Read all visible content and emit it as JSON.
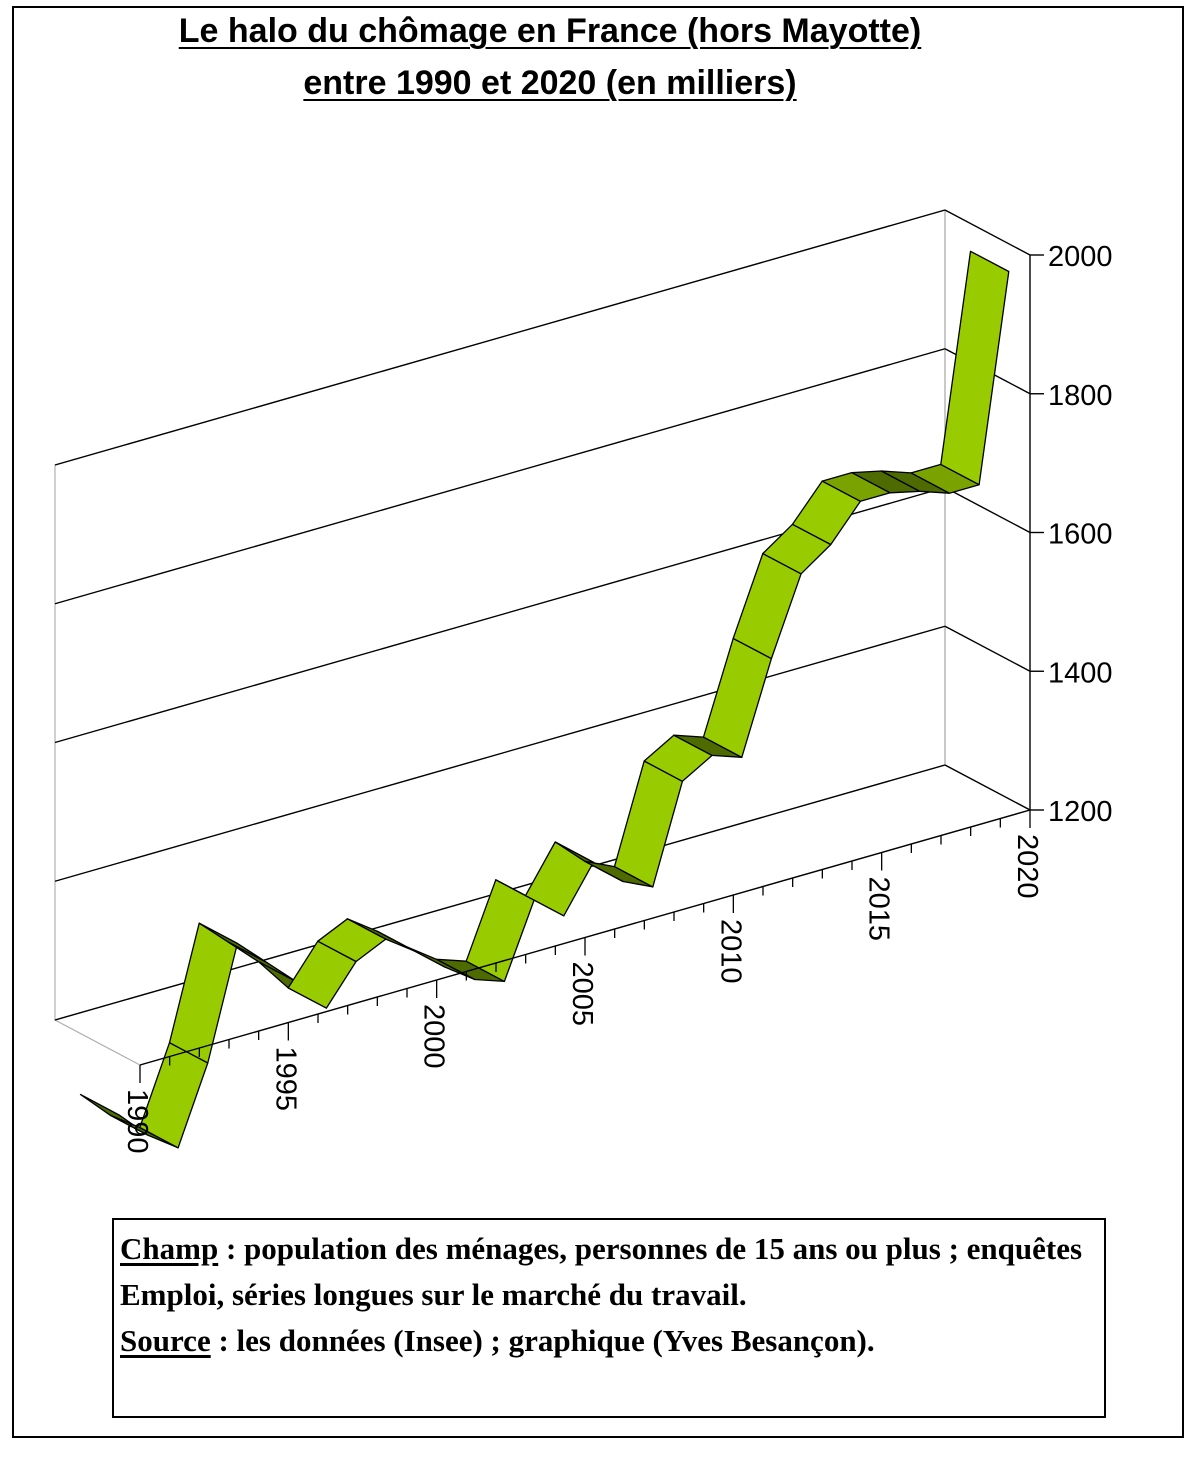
{
  "title_line1": "Le halo du chômage en France (hors Mayotte)",
  "title_line2": "entre 1990 et 2020 (en milliers)",
  "note": {
    "champ_label": "Champ",
    "champ_text": " : population des ménages, personnes de 15 ans ou plus ; enquêtes Emploi, séries longues sur le marché du travail.",
    "source_label": "Source",
    "source_text": " : les données (Insee) ; graphique (Yves Besançon)."
  },
  "colors": {
    "ribbon_top": "#99cc00",
    "ribbon_dark": "#4d6b00",
    "ribbon_mid": "#7aa300",
    "gridline": "#000000",
    "wall": "#b0b0b0"
  },
  "chart_data": {
    "type": "area",
    "style": "3d-ribbon",
    "x": [
      1990,
      1991,
      1992,
      1993,
      1994,
      1995,
      1996,
      1997,
      1998,
      1999,
      2000,
      2001,
      2002,
      2003,
      2004,
      2005,
      2006,
      2007,
      2008,
      2009,
      2010,
      2011,
      2012,
      2013,
      2014,
      2015,
      2016,
      2017,
      2018,
      2019,
      2020
    ],
    "values": [
      1112,
      1070,
      1040,
      1150,
      1310,
      1270,
      1230,
      1180,
      1235,
      1255,
      1225,
      1190,
      1160,
      1145,
      1250,
      1215,
      1280,
      1240,
      1220,
      1360,
      1385,
      1370,
      1500,
      1610,
      1640,
      1690,
      1690,
      1680,
      1665,
      1665,
      1960
    ],
    "xticks": [
      "1990",
      "1995",
      "2000",
      "2005",
      "2010",
      "2015",
      "2020"
    ],
    "yticks": [
      "1200",
      "1400",
      "1600",
      "1800",
      "2000"
    ],
    "ylim": [
      1200,
      2000
    ],
    "grid": true
  }
}
